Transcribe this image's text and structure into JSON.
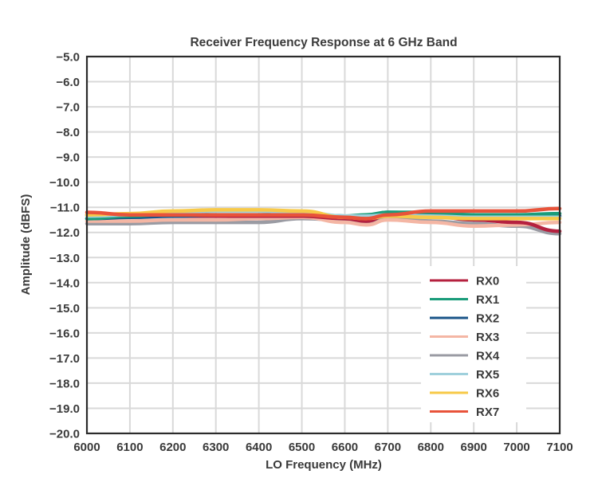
{
  "chart_data": {
    "type": "line",
    "title": "Receiver Frequency Response at 6 GHz Band",
    "xlabel": "LO Frequency (MHz)",
    "ylabel": "Amplitude (dBFS)",
    "xlim": [
      6000,
      7100
    ],
    "ylim": [
      -20.0,
      -5.0
    ],
    "x_ticks": [
      "6000",
      "6100",
      "6200",
      "6300",
      "6400",
      "6500",
      "6600",
      "6700",
      "6800",
      "6900",
      "7000",
      "7100"
    ],
    "y_ticks": [
      "-5.0",
      "-6.0",
      "-7.0",
      "-8.0",
      "-9.0",
      "-10.0",
      "-11.0",
      "-12.0",
      "-13.0",
      "-14.0",
      "-15.0",
      "-16.0",
      "-17.0",
      "-18.0",
      "-19.0",
      "-20.0"
    ],
    "grid": true,
    "legend_position": "bottom-right",
    "x": [
      6000,
      6100,
      6200,
      6300,
      6400,
      6500,
      6600,
      6650,
      6700,
      6800,
      6900,
      7000,
      7100
    ],
    "series": [
      {
        "name": "RX0",
        "color": "#b5213f",
        "values": [
          -11.3,
          -11.35,
          -11.35,
          -11.35,
          -11.35,
          -11.35,
          -11.45,
          -11.55,
          -11.3,
          -11.35,
          -11.5,
          -11.6,
          -11.95
        ]
      },
      {
        "name": "RX1",
        "color": "#1a9c7a",
        "values": [
          -11.45,
          -11.35,
          -11.25,
          -11.15,
          -11.15,
          -11.25,
          -11.35,
          -11.3,
          -11.2,
          -11.2,
          -11.3,
          -11.3,
          -11.25
        ]
      },
      {
        "name": "RX2",
        "color": "#1a5488",
        "values": [
          -11.45,
          -11.4,
          -11.35,
          -11.3,
          -11.3,
          -11.3,
          -11.35,
          -11.35,
          -11.2,
          -11.25,
          -11.35,
          -11.35,
          -11.35
        ]
      },
      {
        "name": "RX3",
        "color": "#f4b6a4",
        "values": [
          -11.55,
          -11.55,
          -11.5,
          -11.5,
          -11.45,
          -11.4,
          -11.6,
          -11.7,
          -11.5,
          -11.6,
          -11.75,
          -11.7,
          -11.6
        ]
      },
      {
        "name": "RX4",
        "color": "#9a9ba3",
        "values": [
          -11.65,
          -11.65,
          -11.6,
          -11.6,
          -11.6,
          -11.45,
          -11.5,
          -11.6,
          -11.4,
          -11.55,
          -11.65,
          -11.75,
          -12.05
        ]
      },
      {
        "name": "RX5",
        "color": "#9fd0dc",
        "values": [
          -11.35,
          -11.3,
          -11.2,
          -11.15,
          -11.15,
          -11.2,
          -11.35,
          -11.35,
          -11.3,
          -11.35,
          -11.4,
          -11.4,
          -11.4
        ]
      },
      {
        "name": "RX6",
        "color": "#f7c948",
        "values": [
          -11.3,
          -11.25,
          -11.15,
          -11.1,
          -11.1,
          -11.15,
          -11.4,
          -11.45,
          -11.35,
          -11.4,
          -11.45,
          -11.45,
          -11.45
        ]
      },
      {
        "name": "RX7",
        "color": "#e8533a",
        "values": [
          -11.2,
          -11.3,
          -11.3,
          -11.3,
          -11.3,
          -11.3,
          -11.4,
          -11.45,
          -11.3,
          -11.15,
          -11.15,
          -11.15,
          -11.05
        ]
      }
    ]
  }
}
